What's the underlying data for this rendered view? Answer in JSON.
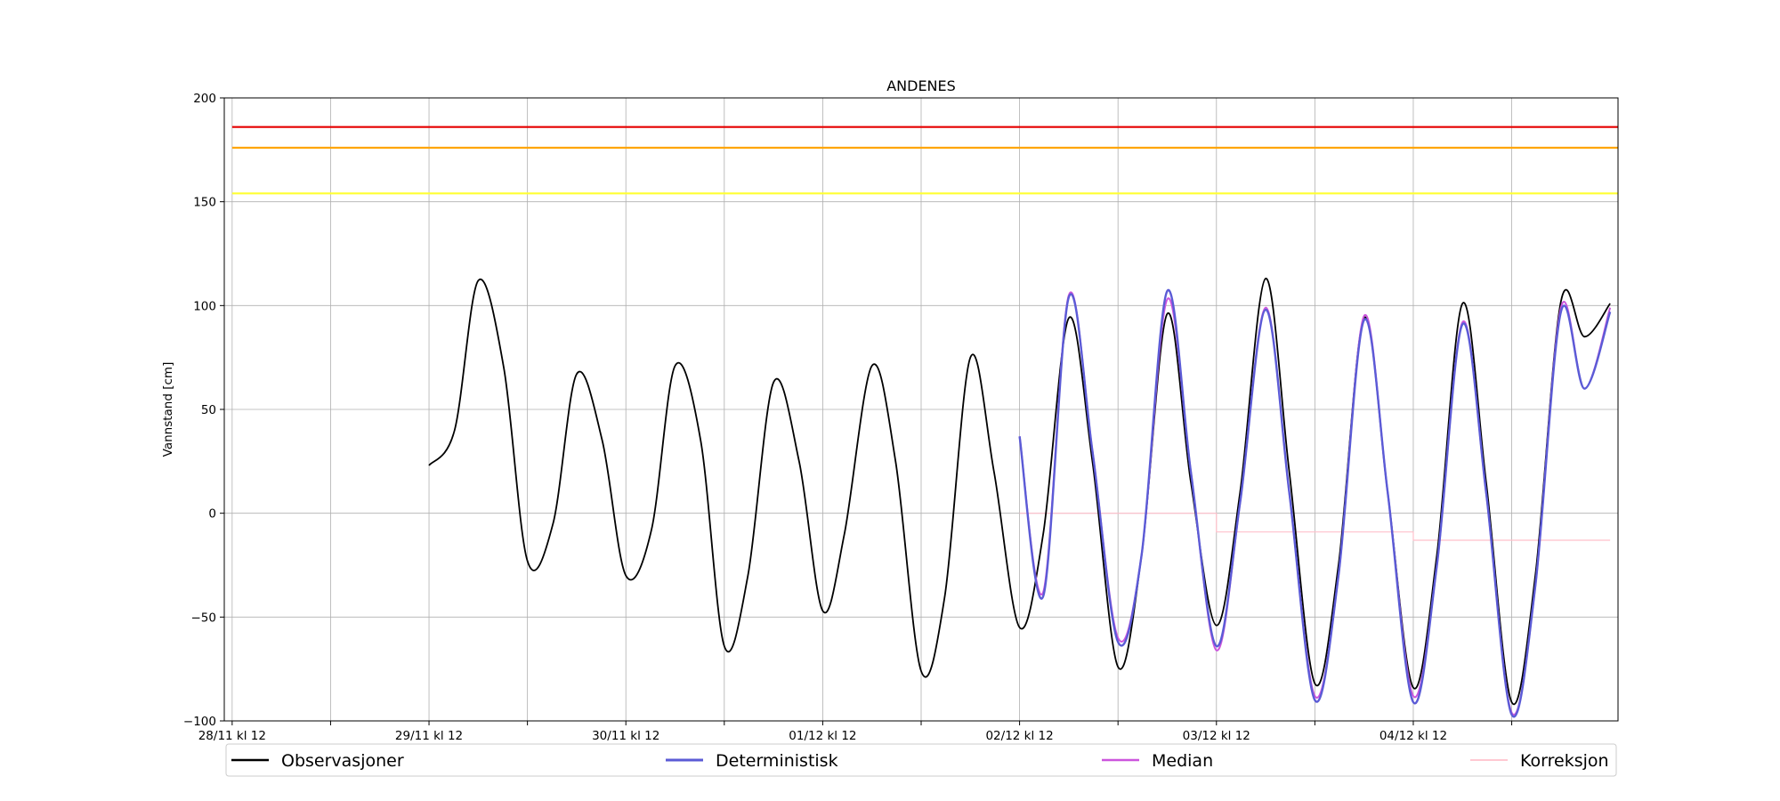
{
  "chart_data": {
    "type": "line",
    "title": "ANDENES",
    "ylabel": "Vannstand [cm]",
    "xlabel": "",
    "ylim": [
      -100,
      200
    ],
    "xlim": [
      -0.04,
      7.04
    ],
    "yticks": [
      -100,
      -50,
      0,
      50,
      100,
      150,
      200
    ],
    "ytick_labels": [
      "−100",
      "−50",
      "0",
      "50",
      "100",
      "150",
      "200"
    ],
    "xticks": [
      0,
      0.5,
      1,
      1.5,
      2,
      2.5,
      3,
      3.5,
      4,
      4.5,
      5,
      5.5,
      6,
      6.5
    ],
    "xtick_labels": [
      "28/11 kl 12",
      "",
      "29/11 kl 12",
      "",
      "30/11 kl 12",
      "",
      "01/12 kl 12",
      "",
      "02/12 kl 12",
      "",
      "03/12 kl 12",
      "",
      "04/12 kl 12",
      ""
    ],
    "grid": true,
    "legend_position": "bottom",
    "thresholds": [
      {
        "value": 186,
        "color": "#e50000"
      },
      {
        "value": 176,
        "color": "#ffa500"
      },
      {
        "value": 154,
        "color": "#ffff33"
      }
    ],
    "series": [
      {
        "name": "Observasjoner",
        "color": "#000000",
        "x": [
          1.0,
          1.13,
          1.25,
          1.38,
          1.5,
          1.63,
          1.75,
          1.88,
          2.0,
          2.13,
          2.25,
          2.38,
          2.5,
          2.62,
          2.75,
          2.88,
          3.0,
          3.11,
          3.25,
          3.37,
          3.5,
          3.62,
          3.75,
          3.87,
          4.0,
          4.12,
          4.25,
          4.37,
          4.5,
          4.62,
          4.75,
          4.87,
          5.0,
          5.12,
          5.25,
          5.37,
          5.5,
          5.62,
          5.75,
          5.87,
          6.0,
          6.12,
          6.25,
          6.37,
          6.5,
          6.62,
          6.75,
          6.87,
          7.0
        ],
        "y": [
          23,
          40,
          112,
          70,
          -23,
          -5,
          67,
          35,
          -30,
          -8,
          71,
          35,
          -64,
          -30,
          63,
          25,
          -47,
          -10,
          71,
          25,
          -76,
          -40,
          75,
          20,
          -55,
          -10,
          94,
          25,
          -74,
          -20,
          96,
          15,
          -54,
          10,
          113,
          20,
          -82,
          -25,
          94,
          10,
          -84,
          -20,
          101,
          15,
          -91,
          -30,
          102,
          85,
          101
        ]
      },
      {
        "name": "Deterministisk",
        "color": "#5b5bd6",
        "x": [
          4.0,
          4.12,
          4.25,
          4.37,
          4.5,
          4.62,
          4.75,
          4.87,
          5.0,
          5.12,
          5.25,
          5.37,
          5.5,
          5.62,
          5.75,
          5.87,
          6.0,
          6.12,
          6.25,
          6.37,
          6.5,
          6.62,
          6.75,
          6.87,
          7.0
        ],
        "y": [
          37,
          -40,
          104,
          30,
          -62,
          -20,
          107,
          20,
          -64,
          5,
          98,
          10,
          -90,
          -30,
          93,
          10,
          -91,
          -25,
          91,
          10,
          -97,
          -35,
          97,
          60,
          97
        ]
      },
      {
        "name": "Median",
        "color": "#cc55dd",
        "x": [
          4.0,
          4.12,
          4.25,
          4.37,
          4.5,
          4.62,
          4.75,
          4.87,
          5.0,
          5.12,
          5.25,
          5.37,
          5.5,
          5.62,
          5.75,
          5.87,
          6.0,
          6.12,
          6.25,
          6.37,
          6.5,
          6.62,
          6.75,
          6.87,
          7.0
        ],
        "y": [
          37,
          -38,
          105,
          30,
          -60,
          -20,
          103,
          20,
          -66,
          5,
          99,
          10,
          -88,
          -30,
          95,
          10,
          -88,
          -25,
          92,
          10,
          -96,
          -35,
          99,
          60,
          99
        ]
      },
      {
        "name": "Korreksjon",
        "color": "#ffc0cb",
        "x": [
          4.0,
          5.0,
          5.0,
          6.0,
          6.0,
          7.0
        ],
        "y": [
          0,
          0,
          -9,
          -9,
          -13,
          -13
        ]
      }
    ]
  }
}
